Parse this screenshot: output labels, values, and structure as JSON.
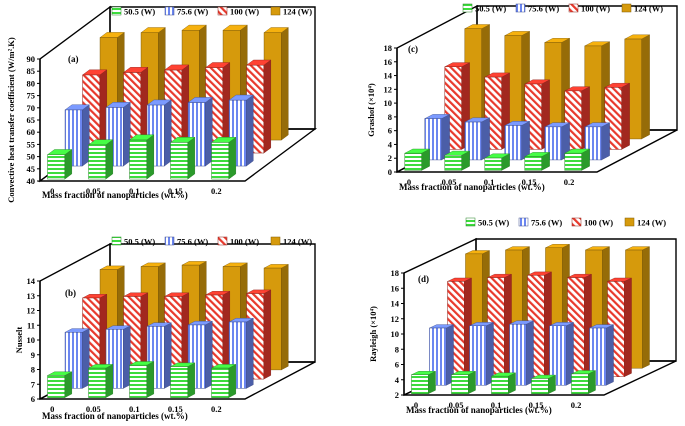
{
  "chart_data": [
    {
      "id": "a",
      "type": "bar",
      "panel_label": "(a)",
      "ylabel": "Convective heat transfer coefficient (W/m².K)",
      "xlabel": "Mass fraction of nanoparticles (wt.%)",
      "categories": [
        "0",
        "0.05",
        "0.1",
        "0.15",
        "0.2"
      ],
      "yticks": [
        "40",
        "45",
        "50",
        "55",
        "60",
        "65",
        "70",
        "75",
        "80",
        "85",
        "90"
      ],
      "ylim": [
        40,
        90
      ],
      "legend": [
        "50.5 (W)",
        "75.6 (W)",
        "100 (W)",
        "124 (W)"
      ],
      "series": [
        {
          "name": "50.5 (W)",
          "values": [
            50,
            54,
            56,
            55,
            55
          ]
        },
        {
          "name": "75.6 (W)",
          "values": [
            63,
            64,
            65,
            66,
            67
          ]
        },
        {
          "name": "100 (W)",
          "values": [
            72,
            73,
            74,
            75,
            76
          ]
        },
        {
          "name": "124 (W)",
          "values": [
            82,
            84,
            85,
            85,
            84
          ]
        }
      ]
    },
    {
      "id": "c",
      "type": "bar",
      "panel_label": "(c)",
      "ylabel": "Grashof (×10⁴)",
      "xlabel": "Mass fraction of nanoparticles (wt.%)",
      "categories": [
        "0",
        "0.05",
        "0.1",
        "0.15",
        "0.2"
      ],
      "yticks": [
        "0",
        "2",
        "4",
        "6",
        "8",
        "10",
        "12",
        "14",
        "16",
        "18"
      ],
      "ylim": [
        0,
        18
      ],
      "legend": [
        "50.5 (W)",
        "75.6 (W)",
        "100 (W)",
        "124 (W)"
      ],
      "series": [
        {
          "name": "50.5 (W)",
          "values": [
            2.5,
            2.2,
            1.8,
            2.0,
            2.5
          ]
        },
        {
          "name": "75.6 (W)",
          "values": [
            6.0,
            5.5,
            5.0,
            4.8,
            4.8
          ]
        },
        {
          "name": "100 (W)",
          "values": [
            12.0,
            10.5,
            9.5,
            8.5,
            9.0
          ]
        },
        {
          "name": "124 (W)",
          "values": [
            16.0,
            15.0,
            14.0,
            13.5,
            14.5
          ]
        }
      ]
    },
    {
      "id": "b",
      "type": "bar",
      "panel_label": "(b)",
      "ylabel": "Nusselt",
      "xlabel": "Mass fraction of nanoparticles (wt.%)",
      "categories": [
        "0",
        "0.05",
        "0.1",
        "0.15",
        "0.2"
      ],
      "yticks": [
        "6",
        "7",
        "8",
        "9",
        "10",
        "11",
        "12",
        "13",
        "14"
      ],
      "ylim": [
        6,
        14
      ],
      "legend": [
        "50.5 (W)",
        "75.6 (W)",
        "100 (W)",
        "124 (W)"
      ],
      "series": [
        {
          "name": "50.5 (W)",
          "values": [
            7.5,
            8.0,
            8.2,
            8.1,
            8.0
          ]
        },
        {
          "name": "75.6 (W)",
          "values": [
            9.8,
            10.0,
            10.2,
            10.3,
            10.5
          ]
        },
        {
          "name": "100 (W)",
          "values": [
            11.5,
            11.6,
            11.6,
            11.7,
            11.8
          ]
        },
        {
          "name": "124 (W)",
          "values": [
            12.8,
            13.0,
            13.1,
            13.0,
            12.9
          ]
        }
      ]
    },
    {
      "id": "d",
      "type": "bar",
      "panel_label": "(d)",
      "ylabel": "Rayleigh (×10⁴)",
      "xlabel": "Mass fraction of nanoparticles (wt.%)",
      "categories": [
        "0",
        "0.05",
        "0.1",
        "0.15",
        "0.2"
      ],
      "yticks": [
        "2",
        "4",
        "6",
        "8",
        "10",
        "12",
        "14",
        "16",
        "18"
      ],
      "ylim": [
        2,
        18
      ],
      "legend": [
        "50.5 (W)",
        "75.6 (W)",
        "100 (W)",
        "124 (W)"
      ],
      "series": [
        {
          "name": "50.5 (W)",
          "values": [
            4.5,
            4.5,
            4.3,
            4.0,
            4.6
          ]
        },
        {
          "name": "75.6 (W)",
          "values": [
            9.5,
            9.8,
            10.0,
            9.8,
            9.5
          ]
        },
        {
          "name": "100 (W)",
          "values": [
            14.5,
            15.0,
            15.3,
            15.0,
            14.5
          ]
        },
        {
          "name": "124 (W)",
          "values": [
            17.0,
            17.5,
            17.8,
            17.5,
            17.5
          ]
        }
      ]
    }
  ],
  "colors": {
    "s0": "#3ddc3d",
    "s1": "#6b86f0",
    "s2": "#e8392c",
    "s3": "#d69a0c",
    "axis": "#000000"
  }
}
